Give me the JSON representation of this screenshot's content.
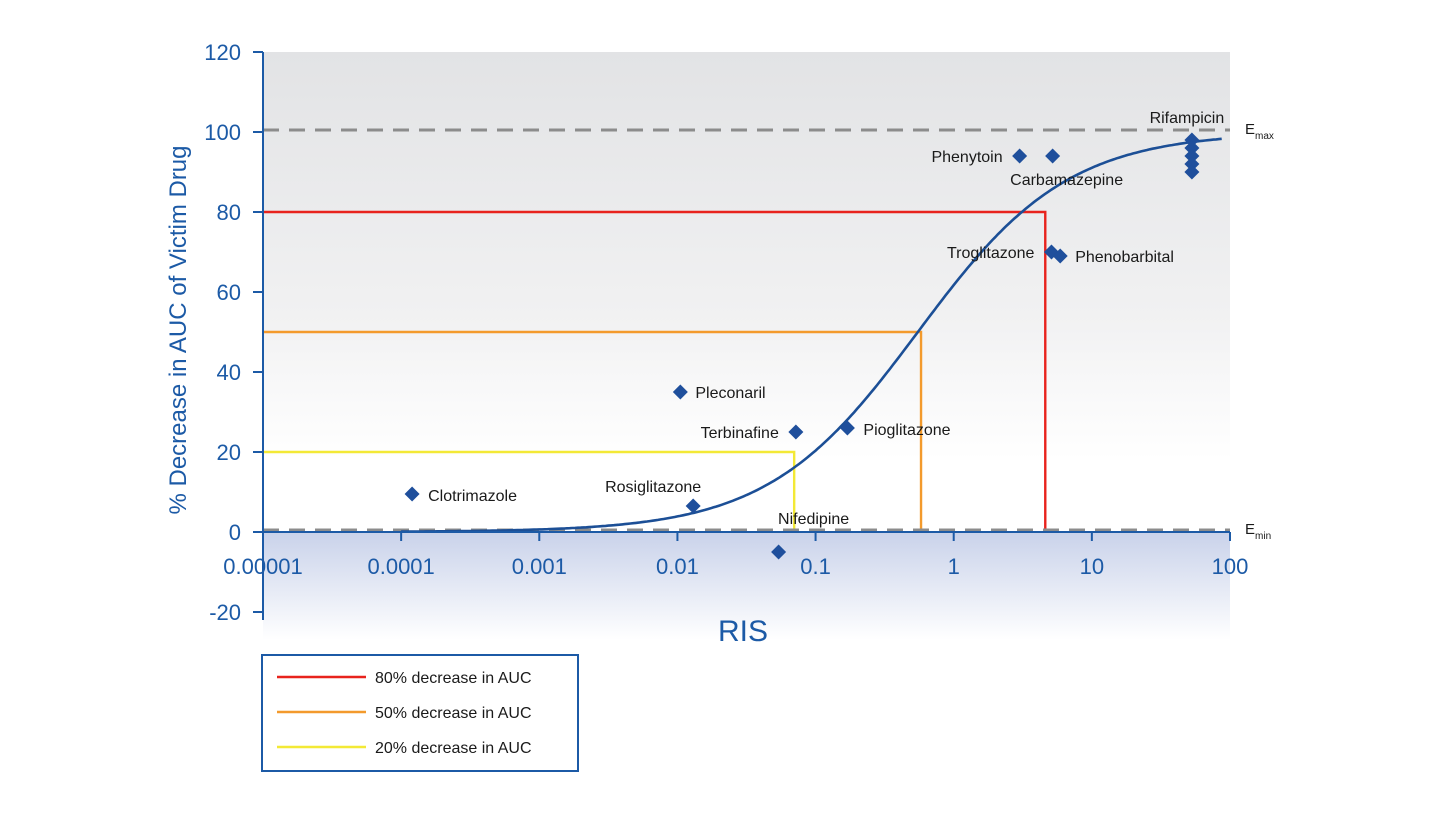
{
  "chart_data": {
    "type": "scatter",
    "xlabel": "RIS",
    "ylabel": "% Decrease in AUC of Victim Drug",
    "x_scale": "log",
    "xlim": [
      1e-05,
      100
    ],
    "ylim": [
      -20,
      120
    ],
    "x_ticks": [
      "0.00001",
      "0.0001",
      "0.001",
      "0.01",
      "0.1",
      "1",
      "10",
      "100"
    ],
    "y_ticks": [
      "-20",
      "0",
      "20",
      "40",
      "60",
      "80",
      "100",
      "120"
    ],
    "grid": false,
    "colors": {
      "axis": "#1c5aa6",
      "marker": "#1f4f9c",
      "curve": "#1c4f96",
      "red": "#e8231d",
      "orange": "#f39a2c",
      "yellow": "#f3e936",
      "dashed": "#8c8c8c"
    },
    "reference_lines": [
      {
        "label_main": "E",
        "label_sub": "max",
        "y": 100
      },
      {
        "label_main": "E",
        "label_sub": "min",
        "y": 0
      }
    ],
    "curve": {
      "description": "sigmoid Emax fit",
      "emax": 100,
      "ec50": 0.55,
      "hill": 0.8
    },
    "thresholds": [
      {
        "name": "80% decrease in AUC",
        "y": 80,
        "x": 4.6,
        "color": "#e8231d"
      },
      {
        "name": "50% decrease in AUC",
        "y": 50,
        "x": 0.58,
        "color": "#f39a2c"
      },
      {
        "name": "20% decrease in AUC",
        "y": 20,
        "x": 0.07,
        "color": "#f3e936"
      }
    ],
    "points": [
      {
        "label": "Clotrimazole",
        "x": 0.00012,
        "y": 9.5
      },
      {
        "label": "Rosiglitazone",
        "x": 0.013,
        "y": 6.5
      },
      {
        "label": "Pleconaril",
        "x": 0.0105,
        "y": 35
      },
      {
        "label": "Terbinafine",
        "x": 0.072,
        "y": 25
      },
      {
        "label": "Pioglitazone",
        "x": 0.17,
        "y": 26
      },
      {
        "label": "Nifedipine",
        "x": 0.054,
        "y": -5
      },
      {
        "label": "Phenytoin",
        "x": 3.0,
        "y": 94
      },
      {
        "label": "Carbamazepine",
        "x": 5.2,
        "y": 94
      },
      {
        "label": "Troglitazone",
        "x": 5.1,
        "y": 70
      },
      {
        "label": "Phenobarbital",
        "x": 5.9,
        "y": 69
      },
      {
        "label": "Rifampicin",
        "x": 53,
        "y": 98
      },
      {
        "label": "",
        "x": 53,
        "y": 96
      },
      {
        "label": "",
        "x": 53,
        "y": 94
      },
      {
        "label": "",
        "x": 53,
        "y": 92
      },
      {
        "label": "",
        "x": 53,
        "y": 90
      }
    ]
  }
}
